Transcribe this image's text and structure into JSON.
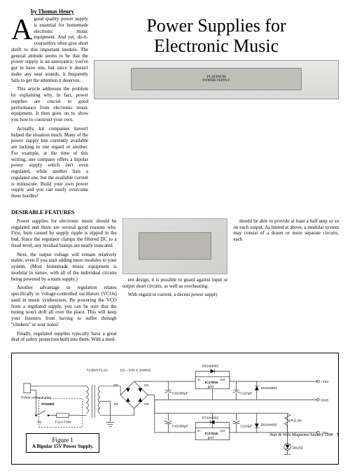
{
  "byline": "by Thomas Henry",
  "title_line1": "Power Supplies for",
  "title_line2": "Electronic Music",
  "dropcap": "A",
  "intro_paragraphs": [
    "good quality power supply is essential for homemade electronic music equipment. And yet, do-it-yourselfers often give short shrift to this important module. The general attitude seems to be that the power supply is an annoyance; you've got to have one, but since it doesn't make any neat sounds, it frequently fails to get the attention it deserves.",
    "This article addresses the problem by explaining why, in fact, power supplies are crucial to good performance from electronic music equipment. It then goes on to show you how to construct your own.",
    "Actually, kit companies haven't helped the situation much. Many of the power supply kits currently available are lacking in one regard or another. For example, at the time of this writing, one company offers a bipolar power supply which isn't even regulated, while another lists a regulated one, but the available current is minuscule. Build your own power supply and you can easily overcome these hurdles!"
  ],
  "hero_caption_top": "PLATINUM",
  "hero_caption_bottom": "POWER SUPPLY",
  "section_heading": "DESIRABLE FEATURES",
  "col1_paragraphs": [
    "Power supplies for electronic music should be regulated and there are several good reasons why. First, hum caused by supply ripple is nipped in the bud. Since the regulator clamps the filtered DC to a fixed level, any residual bumps are neatly truncated.",
    "Next, the output voltage will remain relatively stable, even if you start adding more modules to your system. (Most homemade music equipment is modular in nature, with all of the individual circuits being powered by a main supply.)",
    "Another advantage to regulation relates specifically to voltage-controlled oscillators (VCOs) used in music synthesizers. By powering the VCO from a regulated supply, you can be sure that the tuning won't drift all over the place. This will keep your listeners from having to suffer through \"clinkers\" or sour notes!",
    "Finally, regulated supplies typically have a great deal of safety protection built into them. With a mod-"
  ],
  "col2_paragraphs": [
    "ern design, it is possible to guard against input or output short circuits, as well as overheating.",
    "With regard to current, a decent power supply"
  ],
  "col3_paragraphs": [
    "should be able to provide at least a half amp or so on each output. As hinted at above, a modular system may consist of a dozen or more separate circuits, each"
  ],
  "figure": {
    "number": "Figure 1",
    "caption": "A Bipolar 15V Power Supply.",
    "labels": {
      "transformer": "T1\n36VCT\n1.5A",
      "bridge": "D1 – D4\n4 X 1N4002",
      "d1": "D1",
      "d2": "D2",
      "d3": "D3",
      "d4": "D4",
      "d5": "D5\n1N4002",
      "d6": "D6\n1N4002",
      "d7": "D7\n1N4002",
      "d8": "D8\n1N4002",
      "ic1": "IC1\n7815",
      "ic2": "IC2\n7915",
      "c1": "C1\n10µF",
      "c2": "C2\n10µF",
      "c3": "C3\n1000µF",
      "c4": "C4\n1000µF",
      "r1": "R1\n1.5K",
      "d9": "D9\nLED",
      "plug": "P1\nline cord\nand plug",
      "switch": "S1",
      "fuse": "F1\n1A Fuse",
      "power": "POWER",
      "pos15": "+15V",
      "neg15": "-15V",
      "gnd": "GND",
      "in": "in",
      "out": "out",
      "gnd_pin": "gnd"
    }
  },
  "footer_mag": "Nuts & Volts Magazine/January 1998",
  "page_number": "7",
  "colors": {
    "text": "#000000",
    "background": "#ffffff",
    "photo_bg": "#d8d8d4",
    "border": "#000000"
  }
}
